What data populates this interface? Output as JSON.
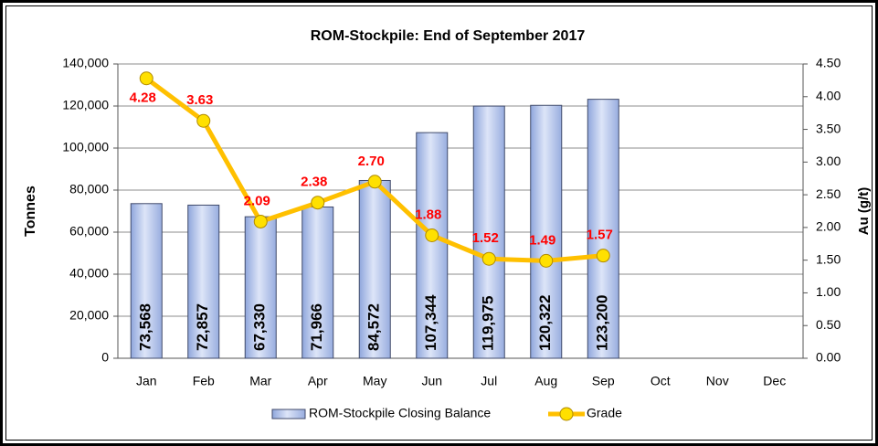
{
  "chart_data": {
    "type": "bar",
    "title": "ROM-Stockpile:  End of September 2017",
    "y_label": "Tonnes",
    "y2_label": "Au (g/t)",
    "categories": [
      "Jan",
      "Feb",
      "Mar",
      "Apr",
      "May",
      "Jun",
      "Jul",
      "Aug",
      "Sep",
      "Oct",
      "Nov",
      "Dec"
    ],
    "series": [
      {
        "name": "ROM-Stockpile Closing Balance",
        "type": "bar",
        "color": "#b8c8ec",
        "border": "#404a6a",
        "values": [
          73568,
          72857,
          67330,
          71966,
          84572,
          107344,
          119975,
          120322,
          123200,
          null,
          null,
          null
        ],
        "value_labels": [
          "73,568",
          "72,857",
          "67,330",
          "71,966",
          "84,572",
          "107,344",
          "119,975",
          "120,322",
          "123,200",
          null,
          null,
          null
        ]
      },
      {
        "name": "Grade",
        "type": "line",
        "axis": "y2",
        "color": "#ffc000",
        "marker_color": "#ffe000",
        "label_color": "#ff0000",
        "values": [
          4.28,
          3.63,
          2.09,
          2.38,
          2.7,
          1.88,
          1.52,
          1.49,
          1.57,
          null,
          null,
          null
        ],
        "value_labels": [
          "4.28",
          "3.63",
          "2.09",
          "2.38",
          "2.70",
          "1.88",
          "1.52",
          "1.49",
          "1.57",
          null,
          null,
          null
        ]
      }
    ],
    "ylim": [
      0,
      140000
    ],
    "yticks": [
      0,
      {
        "value": 20000,
        "label": "20,000"
      },
      {
        "value": 40000,
        "label": "40,000"
      },
      {
        "value": 60000,
        "label": "60,000"
      },
      {
        "value": 80000,
        "label": "80,000"
      },
      {
        "value": 100000,
        "label": "100,000"
      },
      {
        "value": 120000,
        "label": "120,000"
      },
      {
        "value": 140000,
        "label": "140,000"
      }
    ],
    "y2lim": [
      0,
      4.5
    ],
    "y2ticks": [
      {
        "value": 0,
        "label": "0.00"
      },
      {
        "value": 0.5,
        "label": "0.50"
      },
      {
        "value": 1,
        "label": "1.00"
      },
      {
        "value": 1.5,
        "label": "1.50"
      },
      {
        "value": 2,
        "label": "2.00"
      },
      {
        "value": 2.5,
        "label": "2.50"
      },
      {
        "value": 3,
        "label": "3.00"
      },
      {
        "value": 3.5,
        "label": "3.50"
      },
      {
        "value": 4,
        "label": "4.00"
      },
      {
        "value": 4.5,
        "label": "4.50"
      }
    ],
    "grid": true,
    "legend": "bottom"
  }
}
